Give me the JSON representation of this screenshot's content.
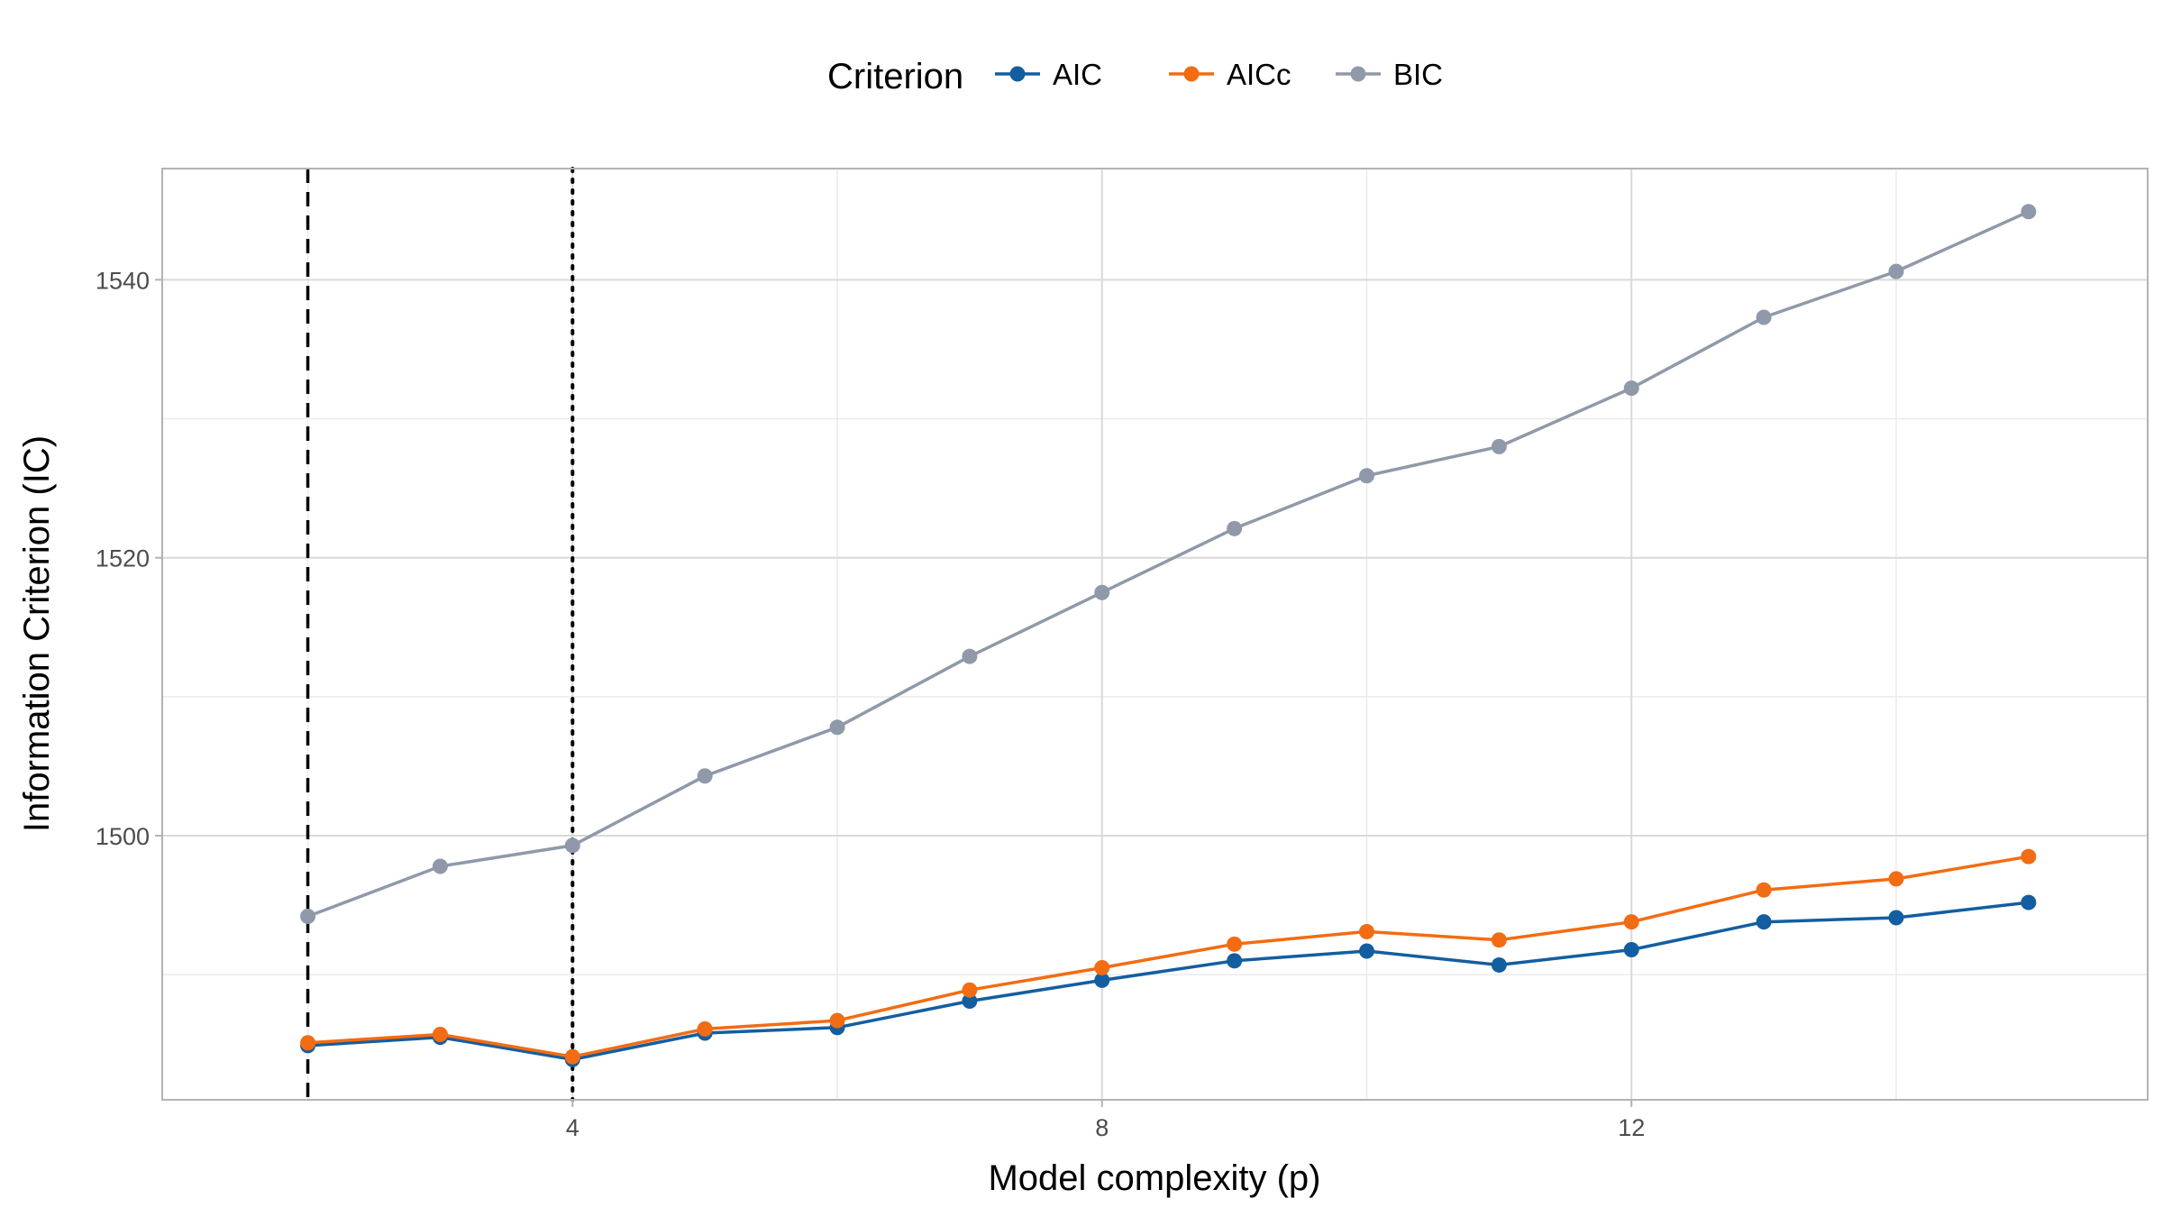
{
  "chart_data": {
    "type": "line",
    "xlabel": "Model complexity (p)",
    "ylabel": "Information Criterion (IC)",
    "xlim": [
      0.9,
      15.9
    ],
    "ylim": [
      1481,
      1548
    ],
    "x_ticks": [
      4,
      8,
      12
    ],
    "x_minor_ticks": [
      2,
      6,
      10,
      14
    ],
    "y_ticks": [
      1500,
      1520,
      1540
    ],
    "y_minor_ticks": [
      1490,
      1510,
      1530
    ],
    "grid": true,
    "legend": {
      "title": "Criterion",
      "position": "top",
      "entries": [
        "AIC",
        "AICc",
        "BIC"
      ]
    },
    "x": [
      2,
      3,
      4,
      5,
      6,
      7,
      8,
      9,
      10,
      11,
      12,
      13,
      14,
      15
    ],
    "series": [
      {
        "name": "AIC",
        "color": "#135ea0",
        "values": [
          1484.9,
          1485.5,
          1483.9,
          1485.8,
          1486.2,
          1488.1,
          1489.6,
          1491.0,
          1491.7,
          1490.7,
          1491.8,
          1493.8,
          1494.1,
          1495.2
        ]
      },
      {
        "name": "AICc",
        "color": "#f26c13",
        "values": [
          1485.1,
          1485.7,
          1484.1,
          1486.1,
          1486.7,
          1488.9,
          1490.5,
          1492.2,
          1493.1,
          1492.5,
          1493.8,
          1496.1,
          1496.9,
          1498.5
        ]
      },
      {
        "name": "BIC",
        "color": "#8f99a9",
        "values": [
          1494.2,
          1497.8,
          1499.3,
          1504.3,
          1507.8,
          1512.9,
          1517.5,
          1522.1,
          1525.9,
          1528.0,
          1532.2,
          1537.3,
          1540.6,
          1544.9
        ]
      }
    ],
    "reference_lines": [
      {
        "x": 2,
        "style": "dashed",
        "color": "#000000"
      },
      {
        "x": 4,
        "style": "dotted",
        "color": "#000000"
      }
    ]
  }
}
